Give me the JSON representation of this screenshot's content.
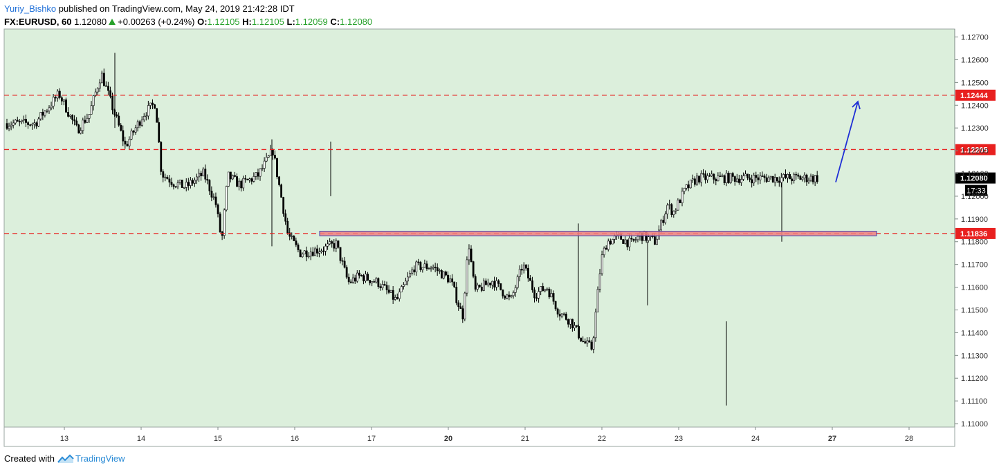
{
  "header": {
    "author": "Yuriy_Bishko",
    "published": "published on TradingView.com, May 24, 2019 21:42:28 IDT",
    "symbol": "FX:EURUSD, 60",
    "last": "1.12080",
    "change": "+0.00263 (+0.24%)",
    "open_label": "O:",
    "open": "1.12105",
    "high_label": "H:",
    "high": "1.12105",
    "low_label": "L:",
    "low": "1.12059",
    "close_label": "C:",
    "close": "1.12080"
  },
  "footer": {
    "created_with": "Created with",
    "brand": "TradingView"
  },
  "colors": {
    "plot_background": "#dcefdc",
    "candle": "#000000",
    "level_line": "#e8201f",
    "zone_fill": "#f08080",
    "zone_border": "#3b3bb0",
    "arrow": "#1f2fd6",
    "current_price_label": "#000000"
  },
  "chart_data": {
    "type": "candlestick",
    "symbol": "FX:EURUSD",
    "timeframe": "60",
    "x_tick_labels": [
      "13",
      "14",
      "15",
      "16",
      "17",
      "20",
      "21",
      "22",
      "23",
      "24",
      "27",
      "28"
    ],
    "y_tick_labels": [
      "1.12700",
      "1.12600",
      "1.12500",
      "1.12400",
      "1.12300",
      "1.12200",
      "1.12100",
      "1.12000",
      "1.11900",
      "1.11800",
      "1.11700",
      "1.11600",
      "1.11500",
      "1.11400",
      "1.11300",
      "1.11200",
      "1.11100",
      "1.11000"
    ],
    "ylim": [
      1.10985,
      1.12735
    ],
    "horizontal_levels": [
      {
        "price": 1.12444,
        "label": "1.12444"
      },
      {
        "price": 1.12205,
        "label": "1.12205"
      },
      {
        "price": 1.11836,
        "label": "1.11836"
      }
    ],
    "current_price": {
      "price": 1.1208,
      "label": "1.12080",
      "countdown": "17:33"
    },
    "zone": {
      "from_day": "16",
      "to_day": "28",
      "price_low": 1.11826,
      "price_high": 1.11846
    },
    "arrow": {
      "from_price": 1.1208,
      "to_price": 1.1241,
      "direction": "up"
    },
    "path_points": [
      {
        "day": 12.5,
        "price": 1.1232
      },
      {
        "day": 12.9,
        "price": 1.1245
      },
      {
        "day": 13.2,
        "price": 1.1229
      },
      {
        "day": 13.4,
        "price": 1.1236
      },
      {
        "day": 13.6,
        "price": 1.1254
      },
      {
        "day": 13.8,
        "price": 1.1238
      },
      {
        "day": 14.0,
        "price": 1.1222
      },
      {
        "day": 14.3,
        "price": 1.1236
      },
      {
        "day": 14.5,
        "price": 1.1241
      },
      {
        "day": 14.6,
        "price": 1.121
      },
      {
        "day": 14.8,
        "price": 1.1206
      },
      {
        "day": 15.0,
        "price": 1.1204
      },
      {
        "day": 15.3,
        "price": 1.121
      },
      {
        "day": 15.5,
        "price": 1.1197
      },
      {
        "day": 15.6,
        "price": 1.118
      },
      {
        "day": 15.7,
        "price": 1.1209
      },
      {
        "day": 15.9,
        "price": 1.1205
      },
      {
        "day": 16.2,
        "price": 1.1209
      },
      {
        "day": 16.45,
        "price": 1.122
      },
      {
        "day": 16.6,
        "price": 1.1198
      },
      {
        "day": 16.7,
        "price": 1.1183
      },
      {
        "day": 16.9,
        "price": 1.1175
      },
      {
        "day": 17.3,
        "price": 1.1177
      },
      {
        "day": 17.5,
        "price": 1.1179
      },
      {
        "day": 17.7,
        "price": 1.1162
      },
      {
        "day": 17.9,
        "price": 1.1165
      },
      {
        "day": 18.2,
        "price": 1.1162
      },
      {
        "day": 18.5,
        "price": 1.1154
      },
      {
        "day": 18.8,
        "price": 1.1169
      },
      {
        "day": 19.1,
        "price": 1.1169
      },
      {
        "day": 19.4,
        "price": 1.1163
      },
      {
        "day": 19.6,
        "price": 1.1147
      },
      {
        "day": 19.7,
        "price": 1.118
      },
      {
        "day": 19.8,
        "price": 1.1158
      },
      {
        "day": 20.1,
        "price": 1.1163
      },
      {
        "day": 20.4,
        "price": 1.1154
      },
      {
        "day": 20.6,
        "price": 1.117
      },
      {
        "day": 20.8,
        "price": 1.1157
      },
      {
        "day": 21.0,
        "price": 1.116
      },
      {
        "day": 21.2,
        "price": 1.1149
      },
      {
        "day": 21.4,
        "price": 1.1145
      },
      {
        "day": 21.6,
        "price": 1.1136
      },
      {
        "day": 21.75,
        "price": 1.1133
      },
      {
        "day": 21.9,
        "price": 1.1172
      },
      {
        "day": 22.0,
        "price": 1.118
      },
      {
        "day": 22.2,
        "price": 1.1182
      },
      {
        "day": 22.4,
        "price": 1.1179
      },
      {
        "day": 22.55,
        "price": 1.1183
      },
      {
        "day": 22.8,
        "price": 1.118
      },
      {
        "day": 23.0,
        "price": 1.1196
      },
      {
        "day": 23.1,
        "price": 1.1193
      },
      {
        "day": 23.3,
        "price": 1.1203
      },
      {
        "day": 23.5,
        "price": 1.1208
      }
    ]
  }
}
